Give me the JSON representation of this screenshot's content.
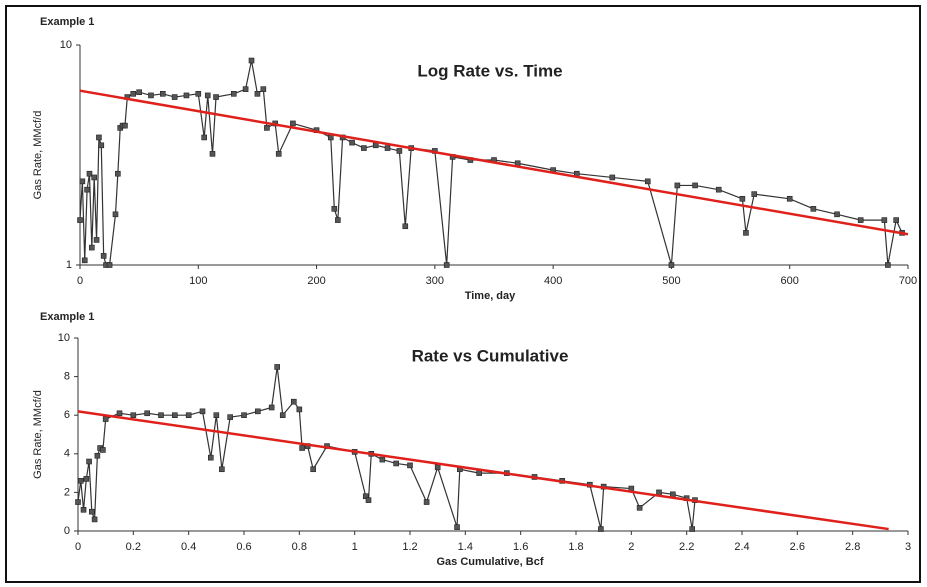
{
  "chart_data": [
    {
      "type": "line",
      "label": "Example 1",
      "title": "Log Rate vs. Time",
      "x_label": "Time, day",
      "y_label": "Gas Rate, MMcf/d",
      "log_y": true,
      "color": "#333333",
      "x": [
        0,
        2,
        4,
        6,
        8,
        10,
        12,
        14,
        16,
        18,
        20,
        22,
        25,
        30,
        32,
        34,
        36,
        38,
        40,
        45,
        50,
        60,
        70,
        80,
        90,
        100,
        105,
        108,
        112,
        115,
        130,
        140,
        145,
        150,
        155,
        158,
        165,
        168,
        180,
        200,
        212,
        215,
        218,
        222,
        230,
        240,
        250,
        260,
        270,
        275,
        280,
        300,
        310,
        315,
        330,
        350,
        370,
        400,
        420,
        450,
        480,
        500,
        505,
        520,
        540,
        560,
        563,
        570,
        600,
        620,
        640,
        660,
        680,
        683,
        690,
        695
      ],
      "values": [
        1.6,
        2.4,
        1.05,
        2.2,
        2.6,
        1.2,
        2.5,
        1.3,
        3.8,
        3.5,
        1.1,
        1.0,
        1.0,
        1.7,
        2.6,
        4.2,
        4.3,
        4.3,
        5.8,
        6.0,
        6.1,
        5.9,
        6.0,
        5.8,
        5.9,
        6.0,
        3.8,
        5.9,
        3.2,
        5.8,
        6.0,
        6.3,
        8.5,
        6.0,
        6.3,
        4.2,
        4.4,
        3.2,
        4.4,
        4.1,
        3.8,
        1.8,
        1.6,
        3.8,
        3.6,
        3.4,
        3.5,
        3.4,
        3.3,
        1.5,
        3.4,
        3.3,
        1.0,
        3.1,
        3.0,
        3.0,
        2.9,
        2.7,
        2.6,
        2.5,
        2.4,
        1.0,
        2.3,
        2.3,
        2.2,
        2.0,
        1.4,
        2.1,
        2.0,
        1.8,
        1.7,
        1.6,
        1.6,
        1.0,
        1.6,
        1.4
      ],
      "trend": {
        "x": [
          0,
          700
        ],
        "values": [
          6.2,
          1.38
        ],
        "color": "#e0201b"
      },
      "xlim": [
        0,
        700
      ],
      "xticks": [
        0,
        100,
        200,
        300,
        400,
        500,
        600,
        700
      ],
      "ylim": [
        1,
        10
      ],
      "yticks": [
        1,
        10
      ]
    },
    {
      "type": "line",
      "label": "Example 1",
      "title": "Rate vs Cumulative",
      "x_label": "Gas Cumulative, Bcf",
      "y_label": "Gas Rate, MMcf/d",
      "log_y": false,
      "color": "#333333",
      "x": [
        0,
        0.01,
        0.02,
        0.03,
        0.04,
        0.05,
        0.06,
        0.07,
        0.08,
        0.09,
        0.1,
        0.15,
        0.2,
        0.25,
        0.3,
        0.35,
        0.4,
        0.45,
        0.48,
        0.5,
        0.52,
        0.55,
        0.6,
        0.65,
        0.7,
        0.72,
        0.74,
        0.78,
        0.8,
        0.81,
        0.83,
        0.85,
        0.9,
        1.0,
        1.04,
        1.05,
        1.06,
        1.1,
        1.15,
        1.2,
        1.26,
        1.3,
        1.37,
        1.38,
        1.45,
        1.55,
        1.65,
        1.75,
        1.85,
        1.89,
        1.9,
        2.0,
        2.03,
        2.1,
        2.15,
        2.2,
        2.22,
        2.23
      ],
      "values": [
        1.5,
        2.6,
        1.1,
        2.7,
        3.6,
        1.0,
        0.6,
        3.9,
        4.3,
        4.2,
        5.8,
        6.1,
        6.0,
        6.1,
        6.0,
        6.0,
        6.0,
        6.2,
        3.8,
        6.0,
        3.2,
        5.9,
        6.0,
        6.2,
        6.4,
        8.5,
        6.0,
        6.7,
        6.3,
        4.3,
        4.4,
        3.2,
        4.4,
        4.1,
        1.8,
        1.6,
        4.0,
        3.7,
        3.5,
        3.4,
        1.5,
        3.3,
        0.2,
        3.2,
        3.0,
        3.0,
        2.8,
        2.6,
        2.4,
        0.1,
        2.3,
        2.2,
        1.2,
        2.0,
        1.9,
        1.7,
        0.1,
        1.6
      ],
      "trend": {
        "x": [
          0,
          2.93
        ],
        "values": [
          6.2,
          0.1
        ],
        "color": "#e0201b"
      },
      "xlim": [
        0,
        3
      ],
      "xticks": [
        0,
        0.2,
        0.4,
        0.6,
        0.8,
        1,
        1.2,
        1.4,
        1.6,
        1.8,
        2,
        2.2,
        2.4,
        2.6,
        2.8,
        3
      ],
      "ylim": [
        0,
        10
      ],
      "yticks": [
        0,
        2,
        4,
        6,
        8,
        10
      ]
    }
  ]
}
